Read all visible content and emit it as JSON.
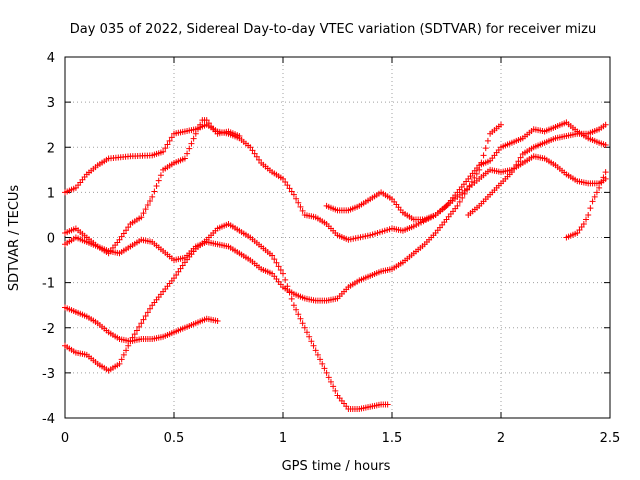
{
  "chart_data": {
    "type": "scatter",
    "title": "Day 035 of 2022, Sidereal Day-to-day VTEC variation (SDTVAR) for receiver mizu",
    "xlabel": "GPS time / hours",
    "ylabel": "SDTVAR / TECUs",
    "xlim": [
      0,
      2.5
    ],
    "ylim": [
      -4,
      4
    ],
    "xticks": [
      "0",
      "0.5",
      "1",
      "1.5",
      "2",
      "2.5"
    ],
    "yticks": [
      "-4",
      "-3",
      "-2",
      "-1",
      "0",
      "1",
      "2",
      "3",
      "4"
    ],
    "grid": true,
    "marker": "+",
    "series_color": "#ff0000",
    "series": [
      {
        "x": [
          0,
          0.05,
          0.1,
          0.15,
          0.2,
          0.3,
          0.4,
          0.45,
          0.5,
          0.55,
          0.6,
          0.65,
          0.7,
          0.75,
          0.8,
          0.85,
          0.9,
          0.95,
          1.0,
          1.05,
          1.1,
          1.15,
          1.2,
          1.25,
          1.3,
          1.4,
          1.5,
          1.55,
          1.6,
          1.7,
          1.8,
          1.9,
          1.95,
          2.0,
          2.05,
          2.1,
          2.15,
          2.2,
          2.25,
          2.3,
          2.35,
          2.4,
          2.45,
          2.48
        ],
        "y": [
          1.0,
          1.1,
          1.4,
          1.6,
          1.75,
          1.8,
          1.82,
          1.9,
          2.3,
          2.35,
          2.4,
          2.5,
          2.35,
          2.3,
          2.2,
          2.0,
          1.65,
          1.45,
          1.3,
          0.95,
          0.5,
          0.45,
          0.3,
          0.05,
          -0.05,
          0.05,
          0.2,
          0.15,
          0.25,
          0.5,
          0.9,
          1.3,
          1.5,
          1.45,
          1.5,
          1.65,
          1.8,
          1.75,
          1.6,
          1.4,
          1.25,
          1.2,
          1.2,
          1.3
        ]
      },
      {
        "x": [
          0,
          0.05,
          0.1,
          0.15,
          0.2,
          0.25,
          0.3,
          0.35,
          0.4,
          0.45,
          0.5,
          0.55,
          0.6,
          0.63,
          0.65,
          0.68,
          0.7,
          0.75,
          0.8
        ],
        "y": [
          -0.15,
          0.0,
          -0.1,
          -0.2,
          -0.35,
          -0.05,
          0.3,
          0.45,
          0.9,
          1.5,
          1.65,
          1.75,
          2.3,
          2.6,
          2.6,
          2.4,
          2.3,
          2.35,
          2.25
        ]
      },
      {
        "x": [
          0,
          0.05,
          0.1,
          0.15,
          0.2,
          0.25,
          0.3,
          0.35,
          0.4,
          0.45,
          0.5,
          0.55,
          0.6,
          0.65,
          0.7,
          0.75,
          0.8,
          0.85,
          0.9,
          0.95,
          1.0,
          1.05,
          1.1,
          1.15,
          1.2,
          1.25,
          1.3,
          1.35,
          1.4,
          1.45,
          1.5,
          1.55,
          1.6,
          1.65,
          1.7,
          1.75,
          1.8,
          1.9,
          1.95,
          2.0
        ],
        "y": [
          0.1,
          0.2,
          0.0,
          -0.2,
          -0.3,
          -0.35,
          -0.2,
          -0.05,
          -0.1,
          -0.3,
          -0.5,
          -0.45,
          -0.2,
          -0.1,
          -0.15,
          -0.2,
          -0.35,
          -0.5,
          -0.7,
          -0.8,
          -1.1,
          -1.25,
          -1.35,
          -1.4,
          -1.4,
          -1.35,
          -1.1,
          -0.95,
          -0.85,
          -0.75,
          -0.7,
          -0.55,
          -0.35,
          -0.15,
          0.1,
          0.4,
          0.7,
          1.5,
          2.3,
          2.5
        ]
      },
      {
        "x": [
          0,
          0.05,
          0.1,
          0.15,
          0.2,
          0.25,
          0.3,
          0.35,
          0.4,
          0.45,
          0.5,
          0.55,
          0.6,
          0.65,
          0.7,
          0.75,
          0.8,
          0.85,
          0.9,
          0.95,
          1.0,
          1.05,
          1.1,
          1.15,
          1.2,
          1.25,
          1.3,
          1.35,
          1.4,
          1.45,
          1.48
        ],
        "y": [
          -2.4,
          -2.55,
          -2.6,
          -2.8,
          -2.95,
          -2.8,
          -2.3,
          -1.9,
          -1.5,
          -1.2,
          -0.9,
          -0.55,
          -0.25,
          -0.05,
          0.2,
          0.3,
          0.15,
          0.0,
          -0.2,
          -0.4,
          -0.8,
          -1.5,
          -2.0,
          -2.5,
          -3.0,
          -3.5,
          -3.8,
          -3.8,
          -3.75,
          -3.7,
          -3.7
        ]
      },
      {
        "x": [
          0,
          0.05,
          0.1,
          0.15,
          0.2,
          0.25,
          0.3,
          0.35,
          0.4,
          0.45,
          0.5,
          0.55,
          0.6,
          0.65,
          0.7
        ],
        "y": [
          -1.55,
          -1.65,
          -1.75,
          -1.9,
          -2.1,
          -2.25,
          -2.3,
          -2.25,
          -2.25,
          -2.2,
          -2.1,
          -2.0,
          -1.9,
          -1.8,
          -1.85
        ]
      },
      {
        "x": [
          1.2,
          1.25,
          1.3,
          1.35,
          1.4,
          1.45,
          1.5,
          1.55,
          1.6,
          1.65,
          1.7,
          1.75,
          1.8,
          1.85,
          1.9,
          1.95,
          2.0,
          2.05,
          2.1,
          2.15,
          2.2,
          2.25,
          2.3,
          2.35,
          2.4,
          2.45,
          2.48
        ],
        "y": [
          0.7,
          0.6,
          0.6,
          0.7,
          0.85,
          1.0,
          0.85,
          0.55,
          0.4,
          0.4,
          0.5,
          0.7,
          1.0,
          1.3,
          1.6,
          1.7,
          2.0,
          2.1,
          2.2,
          2.4,
          2.35,
          2.45,
          2.55,
          2.35,
          2.2,
          2.1,
          2.05
        ]
      },
      {
        "x": [
          1.85,
          1.9,
          1.95,
          2.0,
          2.05,
          2.1,
          2.15,
          2.2,
          2.25,
          2.3,
          2.35,
          2.4,
          2.45,
          2.48
        ],
        "y": [
          0.5,
          0.7,
          0.95,
          1.2,
          1.45,
          1.85,
          2.0,
          2.1,
          2.2,
          2.25,
          2.3,
          2.3,
          2.4,
          2.5
        ]
      },
      {
        "x": [
          2.3,
          2.35,
          2.38,
          2.4,
          2.42,
          2.45,
          2.48
        ],
        "y": [
          0.0,
          0.1,
          0.3,
          0.5,
          0.8,
          1.1,
          1.45
        ]
      }
    ]
  }
}
